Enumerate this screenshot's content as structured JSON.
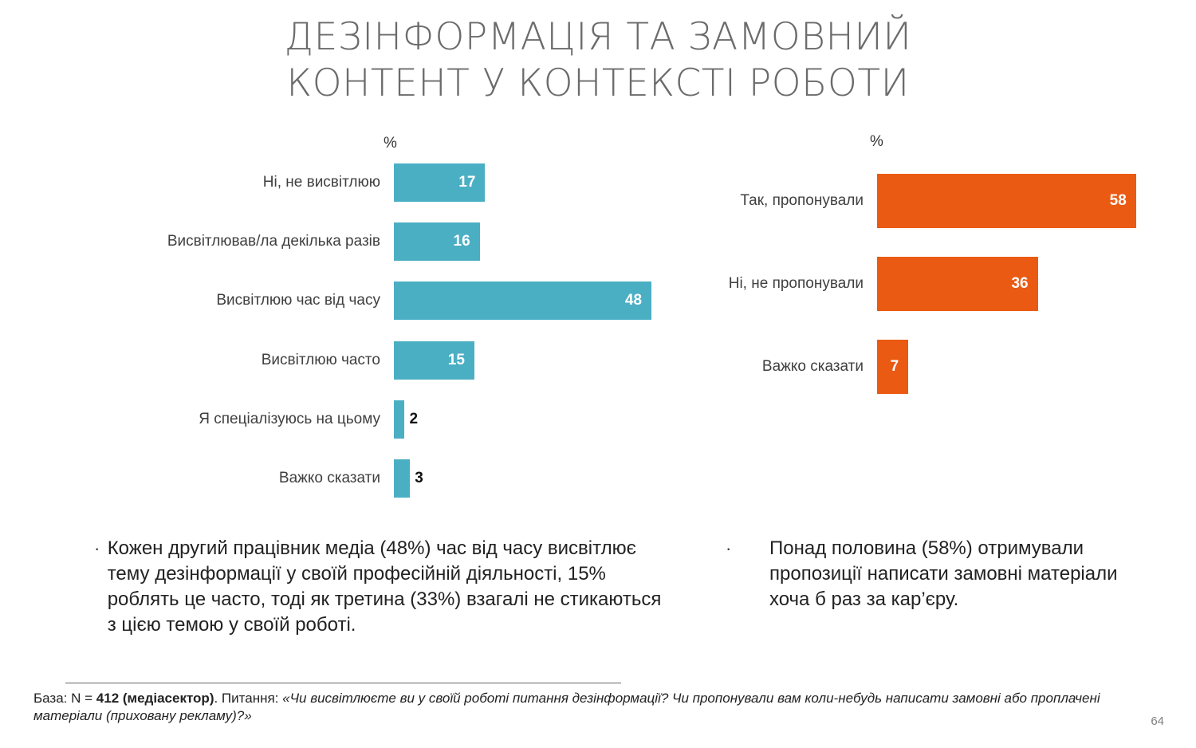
{
  "title": {
    "line1": "ДЕЗІНФОРМАЦІЯ ТА ЗАМОВНИЙ",
    "line2": "КОНТЕНТ У КОНТЕКСТІ РОБОТИ"
  },
  "chart_data": [
    {
      "type": "bar",
      "orientation": "horizontal",
      "unit": "%",
      "color": "#4bafc4",
      "categories": [
        "Ні, не висвітлюю",
        "Висвітлював/ла декілька разів",
        "Висвітлюю час від часу",
        "Висвітлюю часто",
        "Я спеціалізуюсь на цьому",
        "Важко сказати"
      ],
      "values": [
        17,
        16,
        48,
        15,
        2,
        3
      ],
      "xlim": [
        0,
        100
      ]
    },
    {
      "type": "bar",
      "orientation": "horizontal",
      "unit": "%",
      "color": "#eb5a12",
      "categories": [
        "Так, пропонували",
        "Ні, не пропонували",
        "Важко сказати"
      ],
      "values": [
        58,
        36,
        7
      ],
      "xlim": [
        0,
        100
      ]
    }
  ],
  "notes": {
    "bullet": "·",
    "left": "Кожен другий працівник медіа (48%) час від часу висвітлює тему дезінформації у своїй професійній діяльності, 15% роблять це часто, тоді як третина (33%) взагалі не стикаються з цією темою у своїй роботі.",
    "right": "Понад половина (58%) отримували пропозиції написати замовні матеріали хоча б раз за кар’єру."
  },
  "footnote": {
    "prefix": "База: N = ",
    "bold": "412 (медіасектор)",
    "middle": ". Питання: ",
    "question": "«Чи висвітлюєте ви у своїй роботі питання дезінформації? Чи пропонували вам коли-небудь написати замовні або проплачені матеріали (приховану рекламу)?»"
  },
  "page_number": "64"
}
